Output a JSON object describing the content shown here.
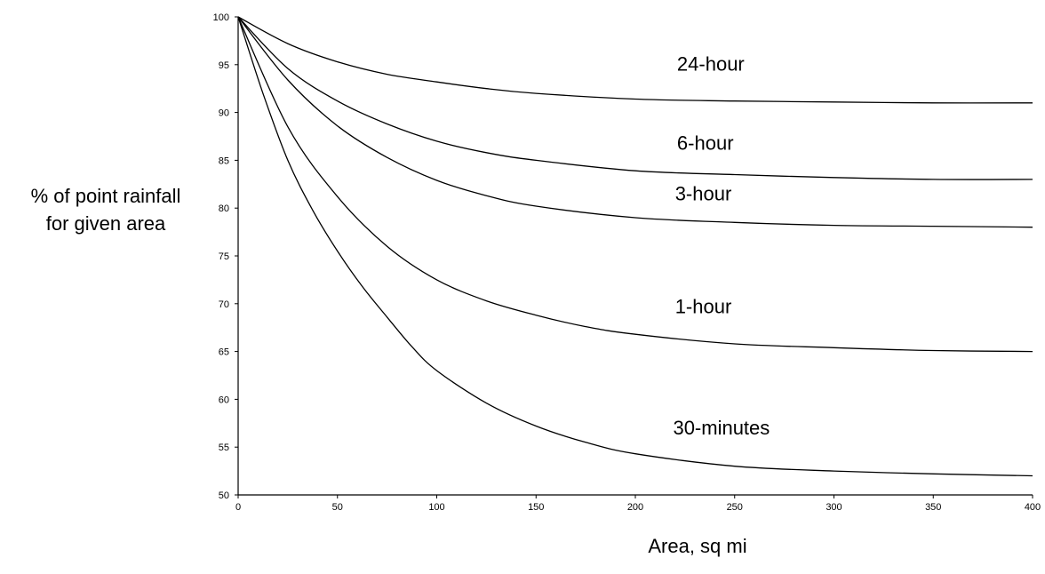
{
  "chart_data": {
    "type": "line",
    "xlabel": "Area, sq mi",
    "ylabel_lines": [
      "% of point rainfall",
      "for given area"
    ],
    "xlim": [
      0,
      400
    ],
    "ylim": [
      50,
      100
    ],
    "xticks": [
      0,
      50,
      100,
      150,
      200,
      250,
      300,
      350,
      400
    ],
    "yticks": [
      50,
      55,
      60,
      65,
      70,
      75,
      80,
      85,
      90,
      95,
      100
    ],
    "grid": false,
    "legend": "none (series labeled inline)",
    "series": [
      {
        "name": "24-hour",
        "x": [
          0,
          25,
          50,
          75,
          100,
          125,
          150,
          200,
          250,
          300,
          350,
          400
        ],
        "y": [
          100,
          97.2,
          95.3,
          94.0,
          93.2,
          92.5,
          92.0,
          91.4,
          91.2,
          91.1,
          91.0,
          91.0
        ]
      },
      {
        "name": "6-hour",
        "x": [
          0,
          25,
          50,
          75,
          100,
          125,
          150,
          200,
          250,
          300,
          350,
          400
        ],
        "y": [
          100,
          94.6,
          91.2,
          88.8,
          87.0,
          85.8,
          85.0,
          83.9,
          83.5,
          83.2,
          83.0,
          83.0
        ]
      },
      {
        "name": "3-hour",
        "x": [
          0,
          25,
          50,
          75,
          100,
          125,
          150,
          200,
          250,
          300,
          350,
          400
        ],
        "y": [
          100,
          93.4,
          88.6,
          85.3,
          82.9,
          81.3,
          80.2,
          79.0,
          78.5,
          78.2,
          78.1,
          78.0
        ]
      },
      {
        "name": "1-hour",
        "x": [
          0,
          25,
          50,
          75,
          100,
          125,
          150,
          175,
          200,
          250,
          300,
          350,
          400
        ],
        "y": [
          100,
          88.5,
          81.2,
          76.0,
          72.5,
          70.3,
          68.8,
          67.6,
          66.8,
          65.8,
          65.4,
          65.1,
          65.0
        ]
      },
      {
        "name": "30-minutes",
        "x": [
          0,
          12.5,
          25,
          37.5,
          50,
          62.5,
          75,
          87.5,
          100,
          125,
          150,
          175,
          200,
          250,
          300,
          350,
          400
        ],
        "y": [
          100,
          92.0,
          85.0,
          79.8,
          75.5,
          71.8,
          68.6,
          65.5,
          63.0,
          59.6,
          57.2,
          55.5,
          54.3,
          53.0,
          52.5,
          52.2,
          52.0
        ]
      }
    ],
    "line_color": "#000000",
    "background": "#ffffff"
  }
}
